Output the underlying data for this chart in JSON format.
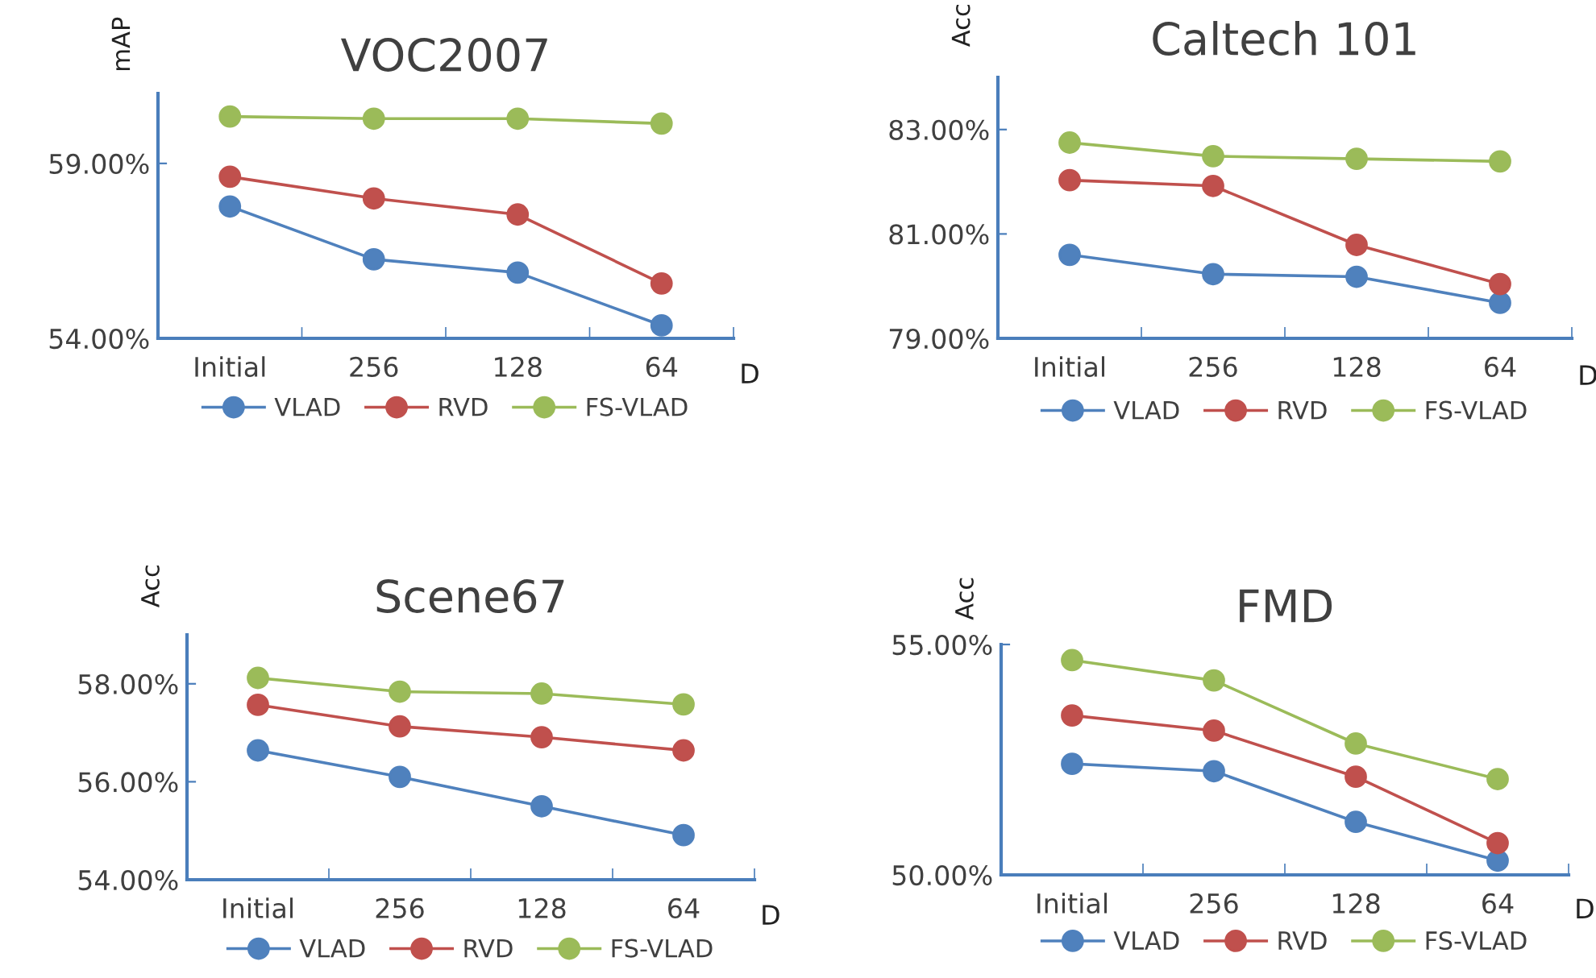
{
  "chart_data": [
    {
      "type": "line",
      "title": "VOC2007",
      "ylabel": "mAP",
      "xlabel": "D",
      "categories": [
        "Initial",
        "256",
        "128",
        "64"
      ],
      "ylim": [
        54,
        61
      ],
      "yticks": [
        {
          "value": 54,
          "label": "54.00%"
        },
        {
          "value": 59,
          "label": "59.00%"
        }
      ],
      "grid": false,
      "legend": "bottom",
      "marker": "circle",
      "series": [
        {
          "name": "VLAD",
          "color": "#4f81bd",
          "values": [
            57.77,
            56.26,
            55.88,
            54.37
          ]
        },
        {
          "name": "RVD",
          "color": "#c0504d",
          "values": [
            58.62,
            58.0,
            57.54,
            55.57
          ]
        },
        {
          "name": "FS-VLAD",
          "color": "#9bbb59",
          "values": [
            60.34,
            60.28,
            60.28,
            60.14
          ]
        }
      ]
    },
    {
      "type": "line",
      "title": "Caltech 101",
      "ylabel": "Acc",
      "xlabel": "D",
      "categories": [
        "Initial",
        "256",
        "128",
        "64"
      ],
      "ylim": [
        79,
        84
      ],
      "yticks": [
        {
          "value": 79,
          "label": "79.00%"
        },
        {
          "value": 81,
          "label": "81.00%"
        },
        {
          "value": 83,
          "label": "83.00%"
        }
      ],
      "grid": false,
      "legend": "bottom",
      "marker": "circle",
      "series": [
        {
          "name": "VLAD",
          "color": "#4f81bd",
          "values": [
            80.6,
            80.23,
            80.18,
            79.68
          ]
        },
        {
          "name": "RVD",
          "color": "#c0504d",
          "values": [
            82.03,
            81.92,
            80.79,
            80.04
          ]
        },
        {
          "name": "FS-VLAD",
          "color": "#9bbb59",
          "values": [
            82.75,
            82.49,
            82.44,
            82.39
          ]
        }
      ]
    },
    {
      "type": "line",
      "title": "Scene67",
      "ylabel": "Acc",
      "xlabel": "D",
      "categories": [
        "Initial",
        "256",
        "128",
        "64"
      ],
      "ylim": [
        54,
        59
      ],
      "yticks": [
        {
          "value": 54,
          "label": "54.00%"
        },
        {
          "value": 56,
          "label": "56.00%"
        },
        {
          "value": 58,
          "label": "58.00%"
        }
      ],
      "grid": false,
      "legend": "bottom",
      "marker": "circle",
      "series": [
        {
          "name": "VLAD",
          "color": "#4f81bd",
          "values": [
            56.64,
            56.1,
            55.5,
            54.91
          ]
        },
        {
          "name": "RVD",
          "color": "#c0504d",
          "values": [
            57.57,
            57.13,
            56.91,
            56.64
          ]
        },
        {
          "name": "FS-VLAD",
          "color": "#9bbb59",
          "values": [
            58.12,
            57.84,
            57.8,
            57.58
          ]
        }
      ]
    },
    {
      "type": "line",
      "title": "FMD",
      "ylabel": "Acc",
      "xlabel": "D",
      "categories": [
        "Initial",
        "256",
        "128",
        "64"
      ],
      "ylim": [
        50,
        55
      ],
      "yticks": [
        {
          "value": 50,
          "label": "50.00%"
        },
        {
          "value": 55,
          "label": "55.00%"
        }
      ],
      "grid": false,
      "legend": "bottom",
      "marker": "circle",
      "series": [
        {
          "name": "VLAD",
          "color": "#4f81bd",
          "values": [
            52.41,
            52.25,
            51.15,
            50.31
          ]
        },
        {
          "name": "RVD",
          "color": "#c0504d",
          "values": [
            53.46,
            53.13,
            52.13,
            50.69
          ]
        },
        {
          "name": "FS-VLAD",
          "color": "#9bbb59",
          "values": [
            54.66,
            54.22,
            52.85,
            52.08
          ]
        }
      ]
    }
  ]
}
